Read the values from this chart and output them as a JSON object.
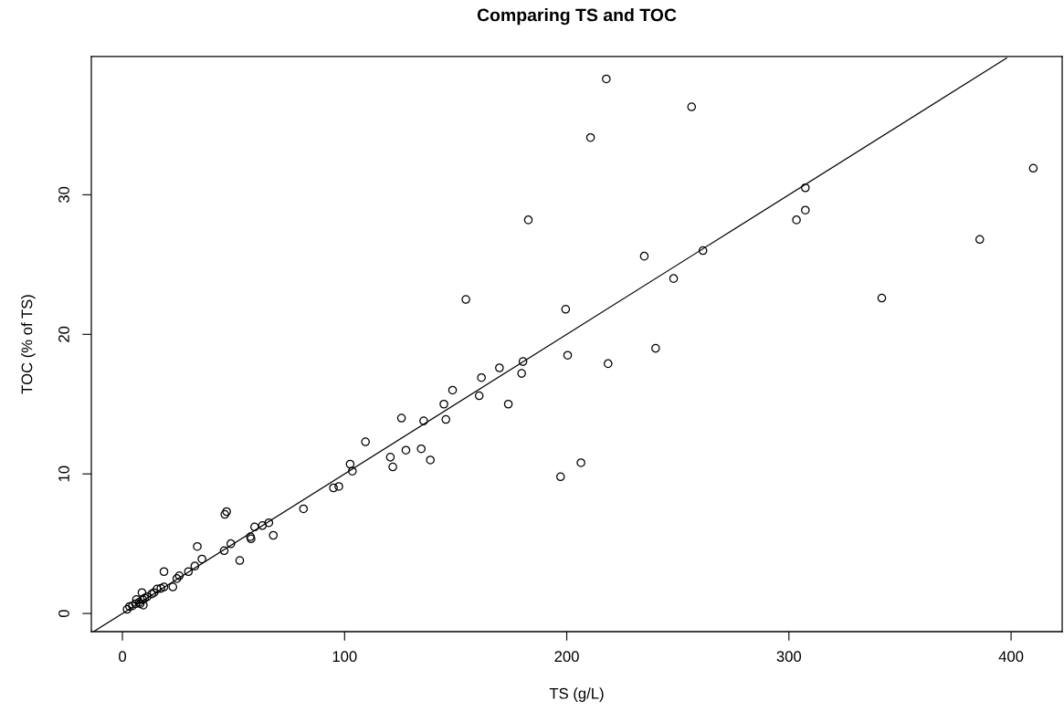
{
  "chart_data": {
    "type": "scatter",
    "title": "Comparing TS and TOC",
    "xlabel": "TS (g/L)",
    "ylabel": "TOC (% of TS)",
    "xlim": [
      -14,
      423
    ],
    "ylim": [
      -1.3,
      39.9
    ],
    "xticks": [
      0,
      100,
      200,
      300,
      400
    ],
    "yticks": [
      0,
      10,
      20,
      30
    ],
    "grid": false,
    "legend": false,
    "marker": "circle",
    "series": [
      {
        "color": "#000000",
        "x": [
          217.8,
          256.2,
          210.7,
          410,
          307.4,
          307.4,
          303.4,
          182.7,
          385.9,
          261.3,
          234.9,
          248.1,
          199.5,
          341.8,
          200.4,
          218.6,
          240.0,
          154.6,
          180.3,
          179.7,
          169.7,
          161.6,
          160.6,
          148.6,
          144.7,
          145.6,
          173.7,
          135.6,
          125.6,
          109.4,
          102.5,
          103.5,
          120.6,
          121.7,
          127.6,
          134.5,
          138.6,
          95.0,
          97.4,
          197.2,
          206.4,
          81.5,
          46.1,
          46.9,
          59.5,
          63.0,
          65.9,
          67.9,
          57.6,
          57.9,
          48.8,
          45.8,
          52.8,
          33.7,
          35.8,
          32.6,
          29.7,
          25.6,
          24.5,
          22.7,
          18.7,
          18.7,
          17.3,
          15.6,
          14.2,
          13.2,
          11.1,
          10.0,
          8.8,
          9.1,
          7.5,
          9.4,
          6.3,
          5.9,
          4.5,
          3.2,
          2.1,
          8.0
        ],
        "values": [
          38.3,
          36.3,
          34.1,
          31.9,
          30.5,
          28.9,
          28.2,
          28.2,
          26.8,
          26.0,
          25.6,
          24.0,
          21.8,
          22.6,
          18.5,
          17.9,
          19.0,
          22.5,
          18.05,
          17.2,
          17.6,
          16.9,
          15.6,
          16.0,
          15.0,
          13.9,
          15.0,
          13.8,
          14.0,
          12.3,
          10.7,
          10.2,
          11.2,
          10.5,
          11.7,
          11.8,
          11.0,
          9.0,
          9.1,
          9.8,
          10.8,
          7.5,
          7.1,
          7.3,
          6.2,
          6.3,
          6.5,
          5.6,
          5.5,
          5.35,
          5.0,
          4.5,
          3.8,
          4.8,
          3.9,
          3.4,
          3.0,
          2.7,
          2.5,
          1.9,
          3.0,
          1.9,
          1.8,
          1.75,
          1.5,
          1.4,
          1.2,
          1.1,
          1.5,
          1.0,
          0.8,
          0.6,
          1.0,
          0.7,
          0.55,
          0.5,
          0.3,
          0.7
        ]
      },
      {
        "type": "line",
        "color": "#000000",
        "x": [
          -13,
          398
        ],
        "values": [
          -1.3,
          39.8
        ],
        "line_style": "solid",
        "marker": "none"
      }
    ]
  }
}
